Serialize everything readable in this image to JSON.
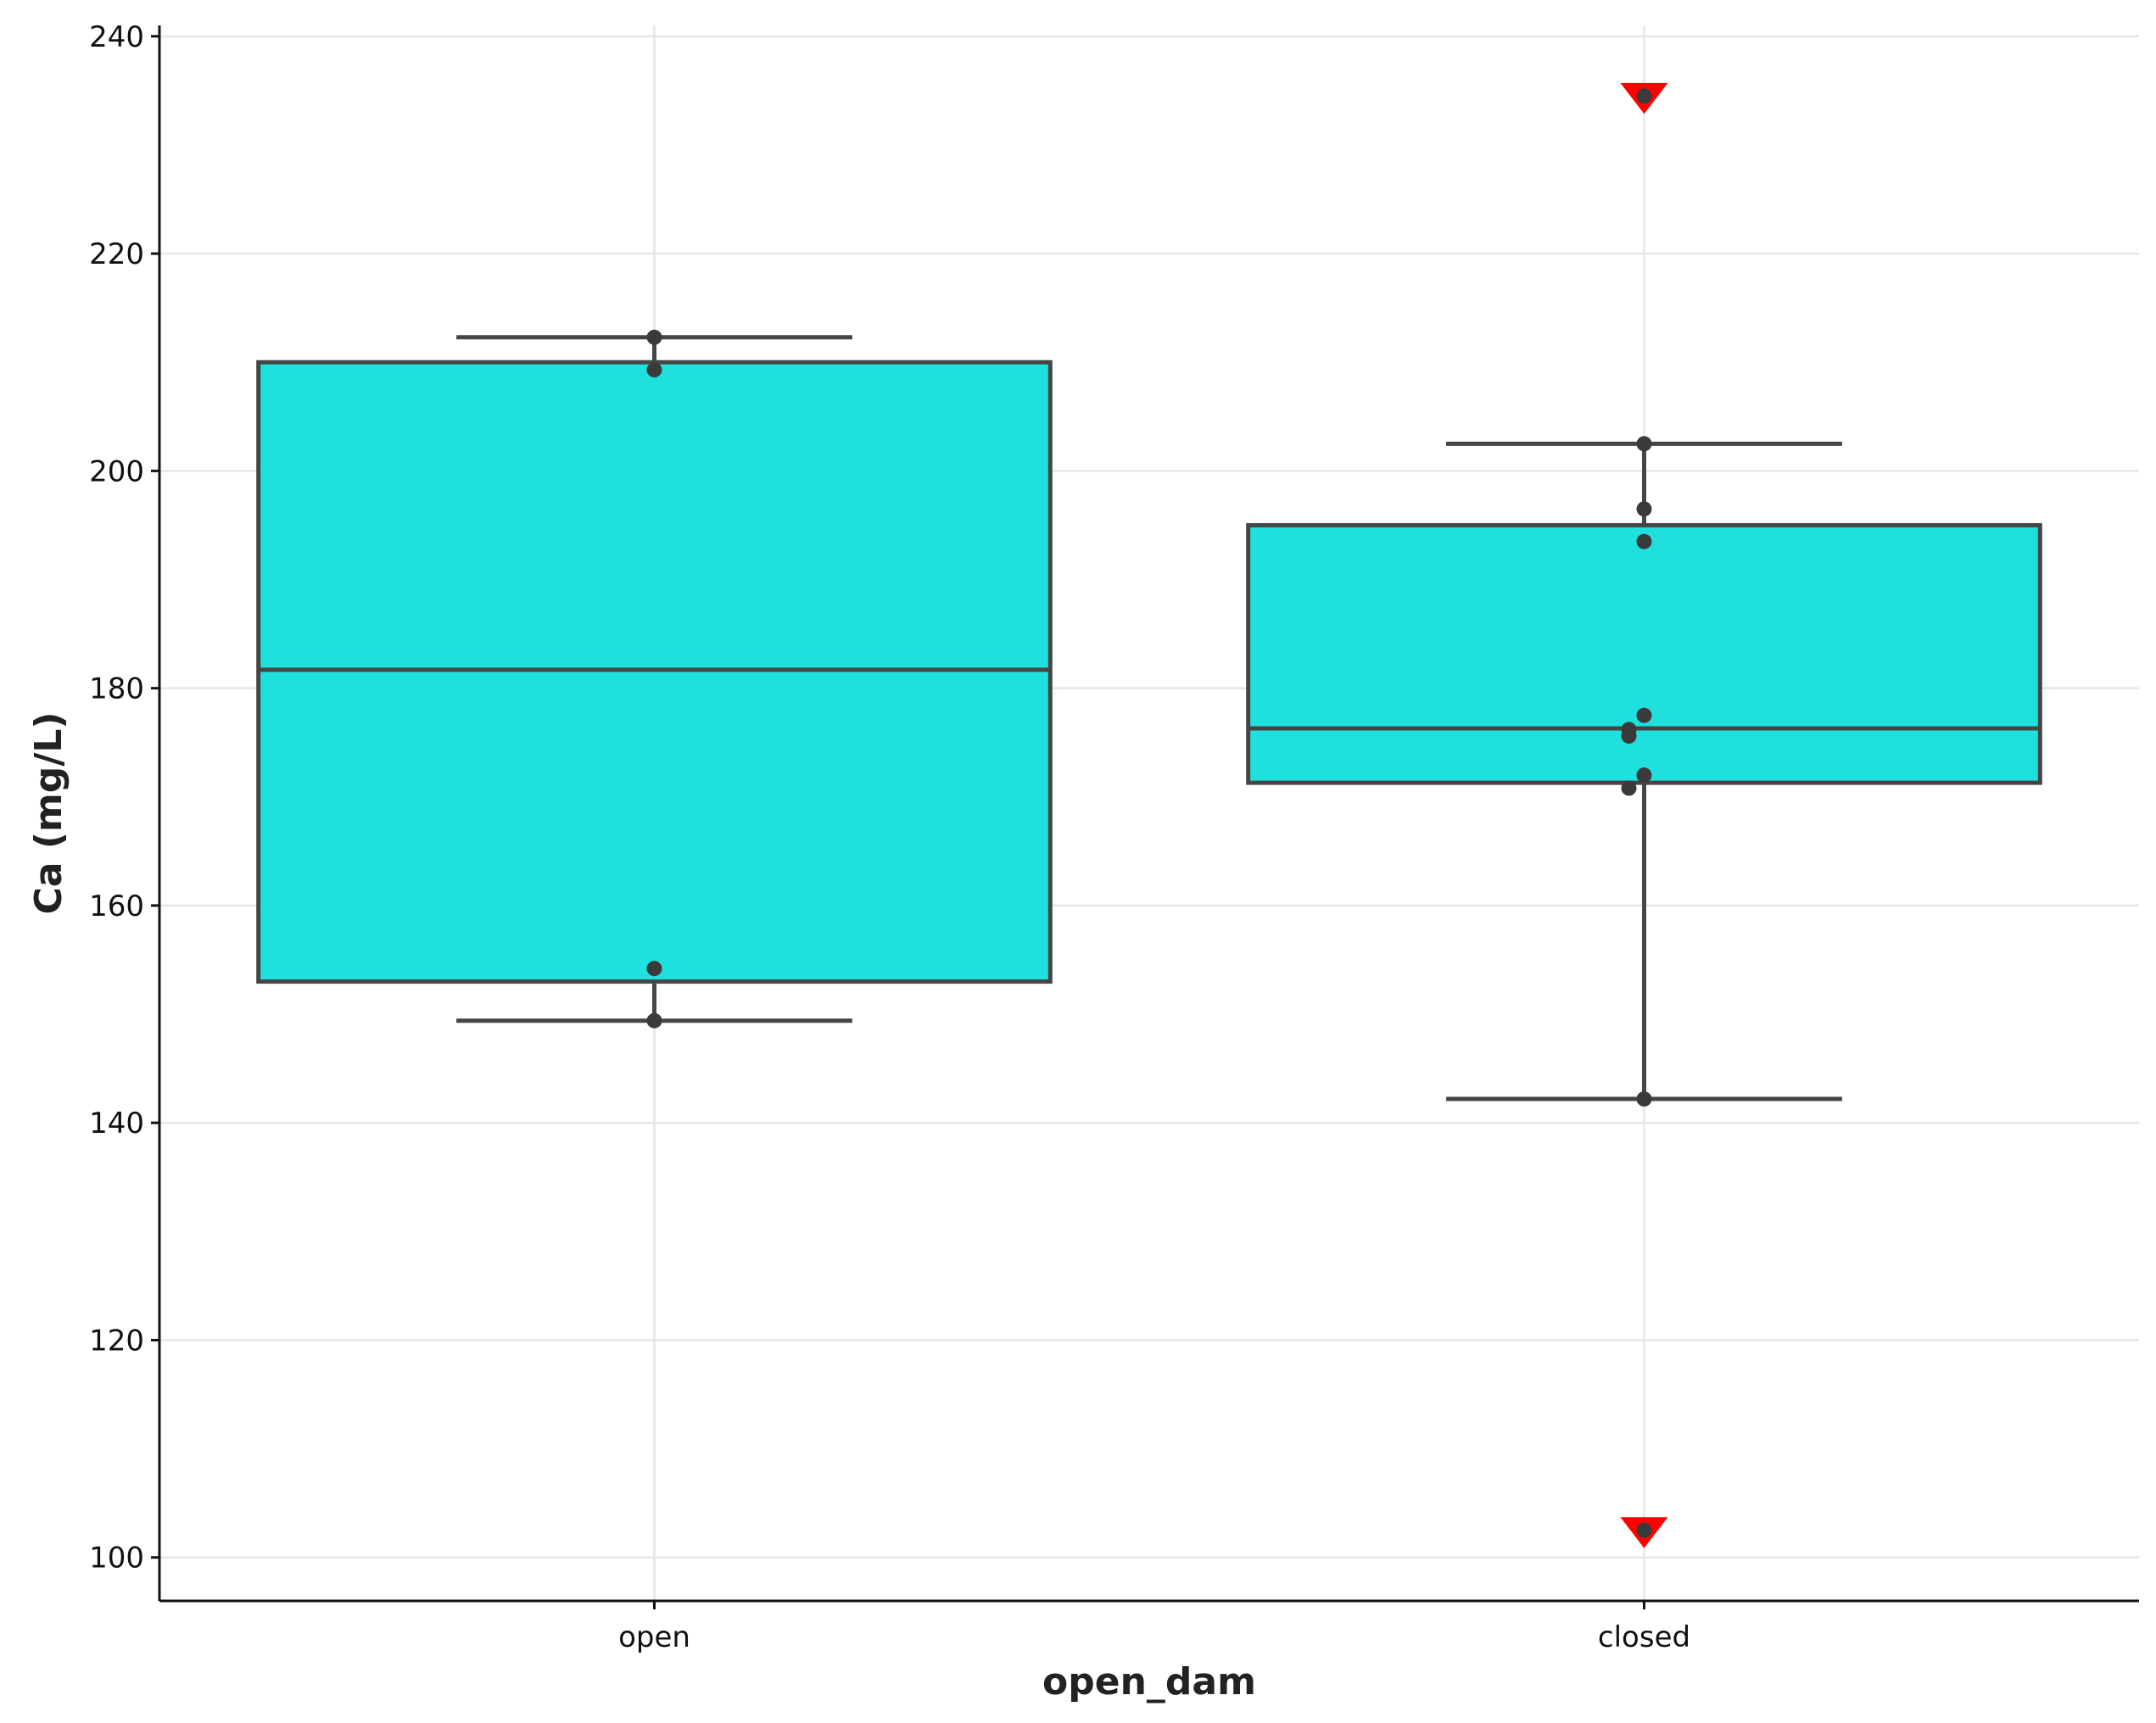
{
  "chart_data": {
    "type": "box",
    "xlabel": "open_dam",
    "ylabel": "Ca (mg/L)",
    "ylim": [
      96,
      241
    ],
    "yticks": [
      100,
      120,
      140,
      160,
      180,
      200,
      220,
      240
    ],
    "categories": [
      "open",
      "closed"
    ],
    "grid": true,
    "box_color": "#20e0de",
    "line_color": "#454545",
    "point_color": "#3a3a3a",
    "outlier_color": "#ff0000",
    "boxes": [
      {
        "category": "open",
        "whisker_low": 149.4,
        "q1": 153.0,
        "median": 181.7,
        "q3": 210.0,
        "whisker_high": 212.3,
        "points": [
          212.3,
          209.3,
          154.2,
          149.4
        ],
        "outliers": []
      },
      {
        "category": "closed",
        "whisker_low": 142.2,
        "q1": 171.3,
        "median": 176.3,
        "q3": 195.0,
        "whisker_high": 202.5,
        "points": [
          202.5,
          196.5,
          193.5,
          177.5,
          176.2,
          175.6,
          172.0,
          170.8,
          142.2
        ],
        "outliers": [
          234.5,
          102.5
        ]
      }
    ]
  }
}
